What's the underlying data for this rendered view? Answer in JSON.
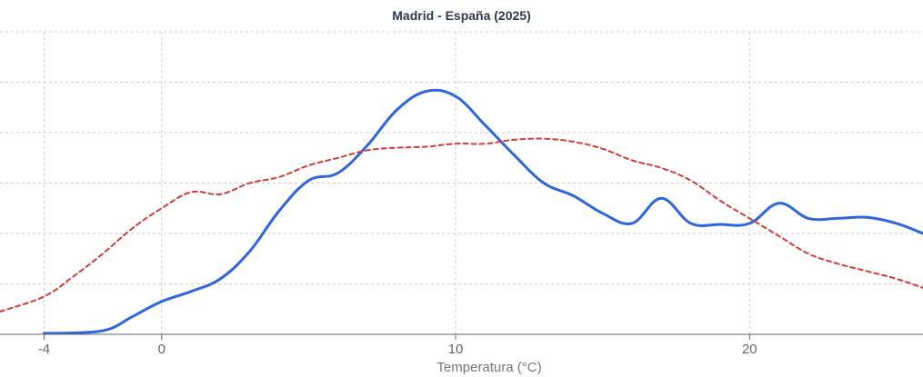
{
  "chart_data": {
    "type": "line",
    "title": "Madrid - España (2025)",
    "xlabel": "Temperatura (°C)",
    "ylabel": "",
    "xlim": [
      -5.5,
      25.9
    ],
    "ylim": [
      0,
      6
    ],
    "x_ticks": [
      -4,
      0,
      10,
      20
    ],
    "y_grid_lines": [
      1,
      2,
      3,
      4,
      5,
      6
    ],
    "grid": true,
    "series": [
      {
        "style": "solid",
        "color": "#2f66dc",
        "points": [
          [
            -4,
            0.02
          ],
          [
            -2.8,
            0.03
          ],
          [
            -1.8,
            0.1
          ],
          [
            -1,
            0.35
          ],
          [
            0,
            0.65
          ],
          [
            1,
            0.85
          ],
          [
            2,
            1.1
          ],
          [
            3,
            1.65
          ],
          [
            4,
            2.45
          ],
          [
            5,
            3.05
          ],
          [
            6,
            3.2
          ],
          [
            7,
            3.75
          ],
          [
            8,
            4.45
          ],
          [
            9,
            4.82
          ],
          [
            10,
            4.72
          ],
          [
            11,
            4.15
          ],
          [
            12,
            3.55
          ],
          [
            13,
            3.0
          ],
          [
            14,
            2.75
          ],
          [
            15,
            2.4
          ],
          [
            16,
            2.2
          ],
          [
            17,
            2.7
          ],
          [
            18,
            2.2
          ],
          [
            19,
            2.18
          ],
          [
            20,
            2.2
          ],
          [
            21,
            2.6
          ],
          [
            22,
            2.3
          ],
          [
            23,
            2.3
          ],
          [
            24,
            2.32
          ],
          [
            25,
            2.2
          ],
          [
            25.9,
            2.0
          ]
        ]
      },
      {
        "style": "dashed",
        "color": "#d23c3c",
        "points": [
          [
            -5.5,
            0.45
          ],
          [
            -4,
            0.75
          ],
          [
            -3,
            1.15
          ],
          [
            -2,
            1.6
          ],
          [
            -1,
            2.1
          ],
          [
            0,
            2.5
          ],
          [
            1,
            2.82
          ],
          [
            2,
            2.78
          ],
          [
            3,
            3.0
          ],
          [
            4,
            3.12
          ],
          [
            5,
            3.35
          ],
          [
            6,
            3.5
          ],
          [
            7,
            3.65
          ],
          [
            8,
            3.7
          ],
          [
            9,
            3.72
          ],
          [
            10,
            3.78
          ],
          [
            11,
            3.78
          ],
          [
            12,
            3.86
          ],
          [
            13,
            3.88
          ],
          [
            14,
            3.82
          ],
          [
            15,
            3.68
          ],
          [
            16,
            3.45
          ],
          [
            17,
            3.3
          ],
          [
            18,
            3.05
          ],
          [
            19,
            2.65
          ],
          [
            20,
            2.3
          ],
          [
            21,
            1.95
          ],
          [
            22,
            1.6
          ],
          [
            23,
            1.4
          ],
          [
            24,
            1.25
          ],
          [
            25,
            1.1
          ],
          [
            25.9,
            0.92
          ]
        ]
      }
    ]
  }
}
